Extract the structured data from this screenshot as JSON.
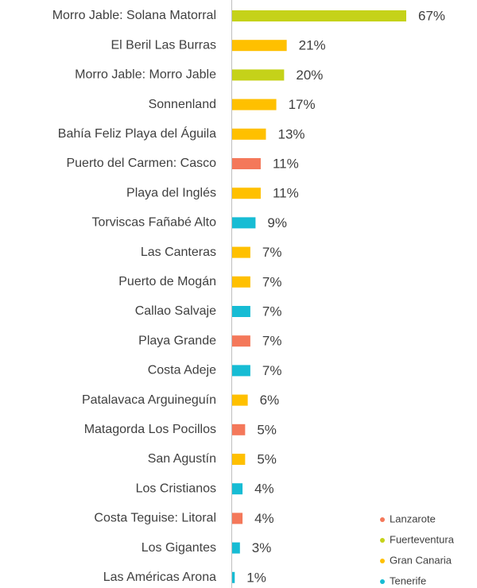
{
  "chart_data": {
    "type": "bar",
    "orientation": "horizontal",
    "categories": [
      "Morro Jable: Solana Matorral",
      "El Beril Las Burras",
      "Morro Jable: Morro Jable",
      "Sonnenland",
      "Bahía Feliz Playa del Águila",
      "Puerto del Carmen: Casco",
      "Playa del Inglés",
      "Torviscas Fañabé Alto",
      "Las Canteras",
      "Puerto de Mogán",
      "Callao Salvaje",
      "Playa Grande",
      "Costa Adeje",
      "Patalavaca Arguineguín",
      "Matagorda Los Pocillos",
      "San Agustín",
      "Los Cristianos",
      "Costa Teguise: Litoral",
      "Los Gigantes",
      "Las Américas Arona"
    ],
    "values": [
      67,
      21,
      20,
      17,
      13,
      11,
      11,
      9,
      7,
      7,
      7,
      7,
      7,
      6,
      5,
      5,
      4,
      4,
      3,
      1
    ],
    "value_labels": [
      "67%",
      "21%",
      "20%",
      "17%",
      "13%",
      "11%",
      "11%",
      "9%",
      "7%",
      "7%",
      "7%",
      "7%",
      "7%",
      "6%",
      "5%",
      "5%",
      "4%",
      "4%",
      "3%",
      "1%"
    ],
    "colors": [
      "#c5d219",
      "#ffc000",
      "#c5d219",
      "#ffc000",
      "#ffc000",
      "#f4785a",
      "#ffc000",
      "#17bcd4",
      "#ffc000",
      "#ffc000",
      "#17bcd4",
      "#f4785a",
      "#17bcd4",
      "#ffc000",
      "#f4785a",
      "#ffc000",
      "#17bcd4",
      "#f4785a",
      "#17bcd4",
      "#17bcd4"
    ],
    "legend": [
      {
        "name": "Lanzarote",
        "color": "#f4785a"
      },
      {
        "name": "Fuerteventura",
        "color": "#c5d219"
      },
      {
        "name": "Gran Canaria",
        "color": "#ffc000"
      },
      {
        "name": "Tenerife",
        "color": "#17bcd4"
      }
    ],
    "legend_position": "lower right"
  }
}
